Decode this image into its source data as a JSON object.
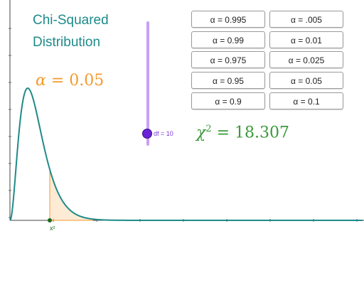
{
  "title_line1": "Chi-Squared",
  "title_line2": "Distribution",
  "alpha_display": {
    "symbol": "α",
    "eq": " = ",
    "value": "0.05"
  },
  "chi_display": {
    "symbol": "χ",
    "sup": "2",
    "eq": " = ",
    "value": "18.307"
  },
  "slider": {
    "label": "df = 10",
    "value": 10
  },
  "point_label": "x²",
  "buttons": [
    {
      "label": "α = 0.995",
      "name": "alpha-0995-button"
    },
    {
      "label": "α = .005",
      "name": "alpha-005-upper-button"
    },
    {
      "label": "α = 0.99",
      "name": "alpha-099-button"
    },
    {
      "label": "α = 0.01",
      "name": "alpha-001-button"
    },
    {
      "label": "α = 0.975",
      "name": "alpha-0975-button"
    },
    {
      "label": "α = 0.025",
      "name": "alpha-0025-button"
    },
    {
      "label": "α = 0.95",
      "name": "alpha-095-button"
    },
    {
      "label": "α = 0.05",
      "name": "alpha-005-button"
    },
    {
      "label": "α = 0.9",
      "name": "alpha-09-button"
    },
    {
      "label": "α = 0.1",
      "name": "alpha-01-button"
    }
  ],
  "colors": {
    "curve": "#1f8a8a",
    "alpha_text": "#f59a2b",
    "chi_text": "#3a9a3a",
    "slider": "#6a22d6",
    "shaded": "#f59a2b"
  }
}
